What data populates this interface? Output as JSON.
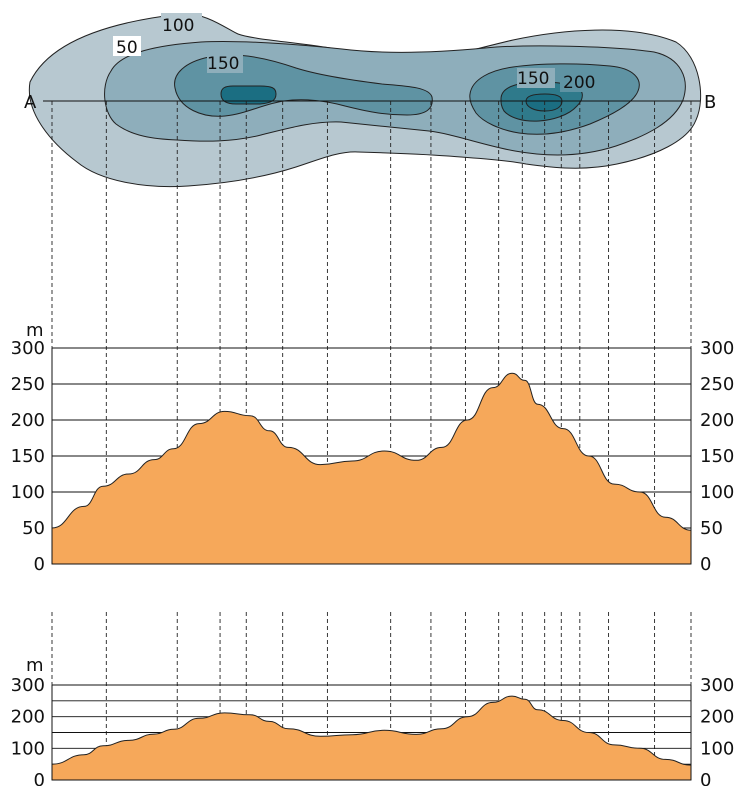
{
  "map": {
    "point_a": "A",
    "point_b": "B",
    "contour_labels": [
      "50",
      "100",
      "150",
      "150",
      "200"
    ],
    "colors": {
      "level_50": "#b7c8d0",
      "level_100": "#8eaebb",
      "level_150": "#5f93a3",
      "level_200": "#2f7a8b",
      "level_peak": "#1b6e82"
    }
  },
  "profiles": {
    "unit_label": "m",
    "terrain_color": "#f6a85a",
    "profile_1": {
      "y_ticks": [
        "0",
        "50",
        "100",
        "150",
        "200",
        "250",
        "300"
      ],
      "right_ticks": [
        "0",
        "50",
        "100",
        "150",
        "200",
        "250",
        "300"
      ]
    },
    "profile_2": {
      "y_ticks": [
        "0",
        "100",
        "200",
        "300"
      ],
      "right_ticks": [
        "0",
        "100",
        "200",
        "300"
      ]
    }
  },
  "chart_data": {
    "type": "area",
    "x_label": "",
    "y_label": "m",
    "ylim": [
      0,
      300
    ],
    "profile_points": [
      [
        0,
        50
      ],
      [
        0.05,
        80
      ],
      [
        0.08,
        108
      ],
      [
        0.12,
        125
      ],
      [
        0.16,
        145
      ],
      [
        0.19,
        160
      ],
      [
        0.23,
        195
      ],
      [
        0.27,
        212
      ],
      [
        0.31,
        206
      ],
      [
        0.34,
        185
      ],
      [
        0.37,
        162
      ],
      [
        0.42,
        138
      ],
      [
        0.47,
        143
      ],
      [
        0.52,
        157
      ],
      [
        0.57,
        144
      ],
      [
        0.61,
        162
      ],
      [
        0.65,
        200
      ],
      [
        0.69,
        245
      ],
      [
        0.72,
        265
      ],
      [
        0.74,
        255
      ],
      [
        0.76,
        222
      ],
      [
        0.8,
        188
      ],
      [
        0.84,
        150
      ],
      [
        0.88,
        111
      ],
      [
        0.92,
        100
      ],
      [
        0.96,
        65
      ],
      [
        1,
        47
      ]
    ],
    "gridlines": [
      50,
      100,
      150,
      200,
      250,
      300
    ],
    "vertical_projection_x": [
      0,
      0.085,
      0.196,
      0.263,
      0.304,
      0.361,
      0.431,
      0.53,
      0.593,
      0.647,
      0.699,
      0.736,
      0.771,
      0.797,
      0.826,
      0.871,
      0.943,
      1
    ]
  }
}
